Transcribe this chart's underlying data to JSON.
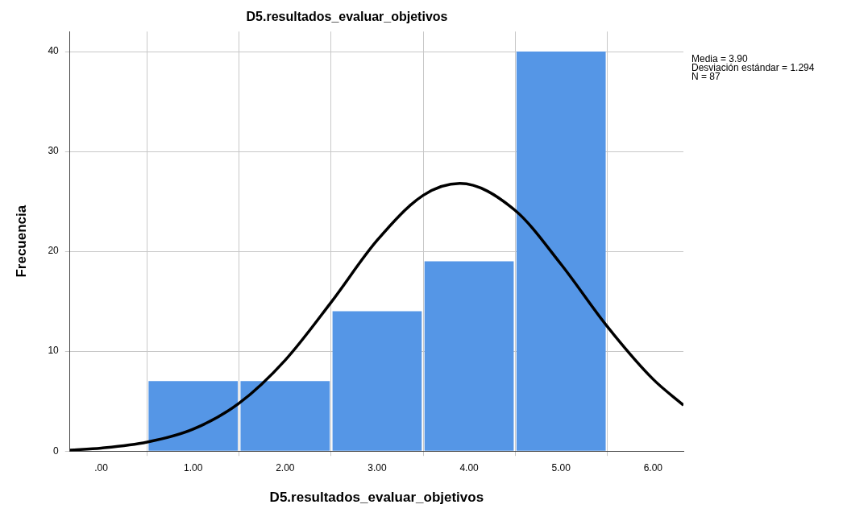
{
  "chart_data": {
    "type": "histogram",
    "title": "D5.resultados_evaluar_objetivos",
    "xlabel": "D5.resultados_evaluar_objetivos",
    "ylabel": "Frecuencia",
    "bins": [
      0.5,
      1.5,
      2.5,
      3.5,
      4.5,
      5.5
    ],
    "values": [
      7,
      7,
      14,
      19,
      40
    ],
    "color": "#5596e6",
    "series": [
      {
        "type": "line",
        "color": "#000000",
        "x": [
          -0.34,
          0,
          0.5,
          1,
          1.5,
          2,
          2.5,
          3,
          3.5,
          3.9,
          4.5,
          5,
          5.5,
          6,
          6.33
        ],
        "values": [
          0.1,
          0.3,
          0.9,
          2.2,
          4.8,
          9.1,
          14.9,
          21.1,
          25.6,
          26.8,
          24.1,
          18.7,
          12.5,
          7.2,
          4.6
        ]
      }
    ],
    "xlim": [
      -0.34,
      6.33
    ],
    "xticks": [
      {
        "value": 0,
        "label": ".00"
      },
      {
        "value": 1,
        "label": "1.00"
      },
      {
        "value": 2,
        "label": "2.00"
      },
      {
        "value": 3,
        "label": "3.00"
      },
      {
        "value": 4,
        "label": "4.00"
      },
      {
        "value": 5,
        "label": "5.00"
      },
      {
        "value": 6,
        "label": "6.00"
      }
    ],
    "ylim": [
      0,
      42
    ],
    "yticks": [
      0,
      10,
      20,
      30,
      40
    ],
    "grid": true,
    "legend": false,
    "marker": "none",
    "line_style": "solid",
    "annotations": [
      "Media = 3.90",
      "Desviación estándar = 1.294",
      "N = 87"
    ]
  }
}
